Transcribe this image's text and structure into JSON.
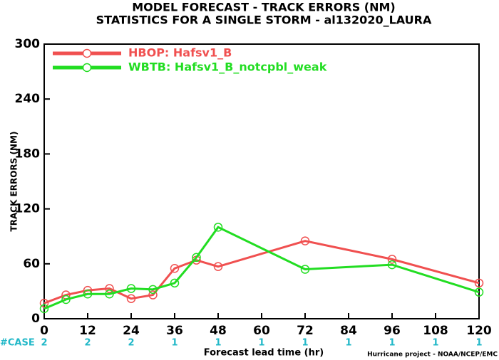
{
  "chart_data": {
    "type": "line",
    "title": "MODEL FORECAST - TRACK ERRORS (NM)",
    "subtitle": "STATISTICS FOR A SINGLE STORM - al132020_LAURA",
    "x_label": "Forecast lead time (hr)",
    "y_label": "TRACK ERRORS (NM)",
    "credit": "Hurricane project - NOAA/NCEP/EMC",
    "case_label": "#CASE",
    "case_x": [
      0,
      12,
      24,
      36,
      48,
      60,
      72,
      84,
      96,
      108,
      120
    ],
    "case_counts": [
      2,
      2,
      2,
      1,
      1,
      1,
      1,
      1,
      1,
      1,
      1
    ],
    "case_color": "#22b8c8",
    "x": [
      0,
      6,
      12,
      18,
      24,
      30,
      36,
      42,
      48,
      72,
      96,
      120
    ],
    "series": [
      {
        "name": "HBOP: Hafsv1_B",
        "color": "#f05050",
        "values": [
          17,
          26,
          31,
          33,
          22,
          26,
          55,
          64,
          57,
          85,
          65,
          39
        ]
      },
      {
        "name": "WBTB: Hafsv1_B_notcpbl_weak",
        "color": "#22dd22",
        "values": [
          11,
          21,
          27,
          27,
          33,
          32,
          39,
          67,
          100,
          54,
          59,
          29
        ]
      }
    ],
    "xlim": [
      0,
      120
    ],
    "xticks": [
      0,
      12,
      24,
      36,
      48,
      60,
      72,
      84,
      96,
      108,
      120
    ],
    "ylim": [
      0,
      300
    ],
    "yticks": [
      0,
      60,
      120,
      180,
      240,
      300
    ],
    "grid": false,
    "legend": "upper left"
  }
}
